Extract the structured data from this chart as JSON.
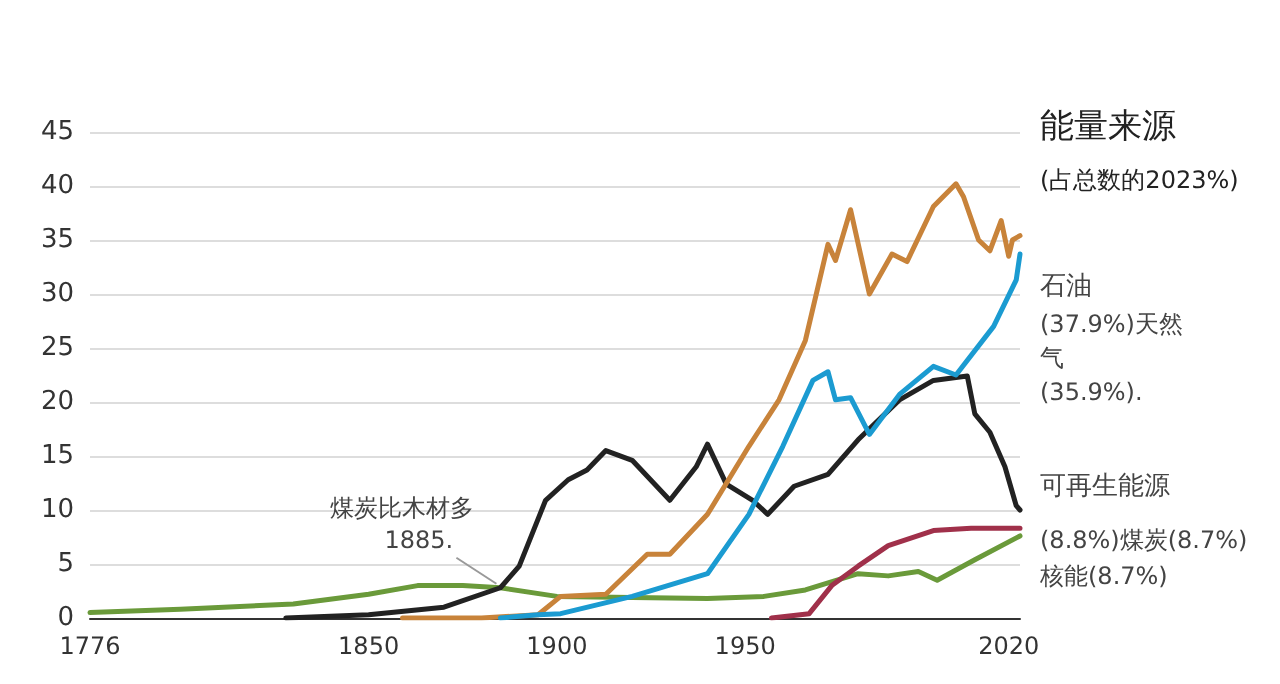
{
  "chart_data": {
    "type": "line",
    "title": "能量来源",
    "subtitle": "(占总数的2023%)",
    "xlim": [
      1776,
      2023
    ],
    "xticks": [
      1776,
      1850,
      1900,
      1950,
      2020
    ],
    "ylim": [
      0,
      45
    ],
    "yticks": [
      0,
      5,
      10,
      15,
      20,
      25,
      30,
      35,
      40,
      45
    ],
    "grid": "y",
    "marker": "none",
    "line_style": "solid",
    "annotations": [
      "煤炭比木材多",
      {
        "text": "1885.",
        "x": 1885,
        "y": 2.8
      },
      "石油",
      "(37.9%)天然",
      "气",
      "(35.9%).",
      "可再生能源",
      "(8.8%)煤炭(8.7%)",
      "核能(8.7%)"
    ],
    "series": [
      {
        "color": "#6a9a3a",
        "x": [
          1776,
          1800,
          1830,
          1850,
          1863,
          1875,
          1885,
          1900,
          1920,
          1940,
          1955,
          1966,
          1980,
          1988,
          1996,
          2001,
          2011,
          2023
        ],
        "values": [
          0.5,
          0.8,
          1.3,
          2.2,
          3.0,
          3.0,
          2.8,
          2.0,
          1.9,
          1.8,
          2.0,
          2.6,
          4.1,
          3.9,
          4.3,
          3.5,
          5.4,
          7.6
        ]
      },
      {
        "color": "#222222",
        "x": [
          1828,
          1850,
          1870,
          1885,
          1890,
          1897,
          1903,
          1908,
          1913,
          1920,
          1930,
          1937,
          1940,
          1945,
          1952,
          1956,
          1963,
          1972,
          1980,
          1991,
          2000,
          2009,
          2011,
          2015,
          2019,
          2022,
          2023
        ],
        "values": [
          0,
          0.3,
          1.0,
          2.8,
          4.8,
          10.9,
          12.8,
          13.7,
          15.5,
          14.6,
          10.9,
          14.0,
          16.1,
          12.4,
          10.9,
          9.6,
          12.2,
          13.3,
          16.5,
          20.2,
          22.0,
          22.4,
          18.9,
          17.2,
          14.0,
          10.4,
          10.0
        ]
      },
      {
        "color": "#c8833a",
        "x": [
          1859,
          1880,
          1895,
          1901,
          1913,
          1924,
          1930,
          1940,
          1951,
          1959,
          1966,
          1972,
          1974,
          1978,
          1983,
          1989,
          1993,
          2000,
          2006,
          2008,
          2012,
          2015,
          2018,
          2020,
          2021,
          2023
        ],
        "values": [
          0,
          0,
          0.3,
          2.0,
          2.2,
          5.9,
          5.9,
          9.6,
          15.9,
          20.2,
          25.7,
          34.6,
          33.1,
          37.8,
          30.0,
          33.7,
          33.0,
          38.1,
          40.2,
          39.0,
          35.0,
          34.0,
          36.8,
          33.5,
          35.0,
          35.4
        ]
      },
      {
        "color": "#1b9bd1",
        "x": [
          1885,
          1895,
          1901,
          1920,
          1940,
          1951,
          1960,
          1968,
          1972,
          1974,
          1978,
          1983,
          1991,
          2000,
          2006,
          2016,
          2022,
          2023
        ],
        "values": [
          0,
          0.3,
          0.4,
          2.0,
          4.1,
          9.6,
          15.9,
          22.0,
          22.8,
          20.2,
          20.4,
          17.0,
          20.7,
          23.3,
          22.5,
          27.0,
          31.3,
          33.7
        ]
      },
      {
        "color": "#a0304a",
        "x": [
          1957,
          1967,
          1973,
          1980,
          1988,
          2000,
          2010,
          2023
        ],
        "values": [
          0,
          0.4,
          3.0,
          4.8,
          6.7,
          8.1,
          8.3,
          8.3
        ]
      }
    ]
  }
}
